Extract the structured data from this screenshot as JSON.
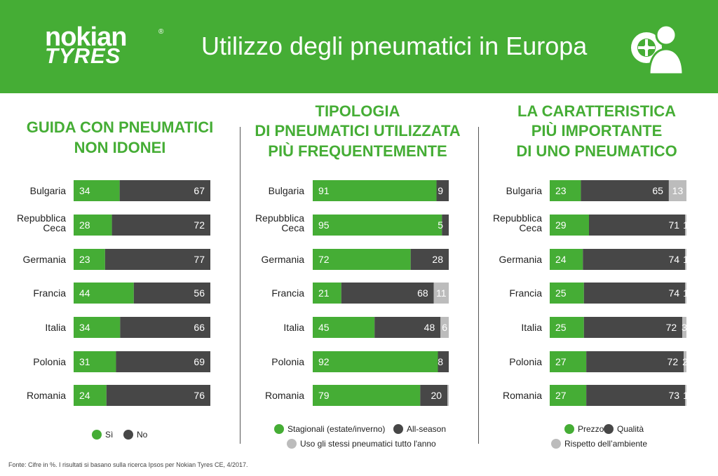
{
  "header": {
    "logo_line1": "nokian",
    "logo_line2": "TYRES",
    "logo_reg": "®",
    "title": "Utilizzo degli pneumatici in Europa",
    "icon": "person-with-tyre-icon",
    "background_color": "#45ad35"
  },
  "colors": {
    "green": "#45ad35",
    "dark": "#474747",
    "grey": "#bcbcbc"
  },
  "chart_data": [
    {
      "type": "bar",
      "stacked": true,
      "orientation": "horizontal",
      "title": [
        "GUIDA CON PNEUMATICI",
        "NON IDONEI"
      ],
      "categories": [
        "Bulgaria",
        "Repubblica Ceca",
        "Germania",
        "Francia",
        "Italia",
        "Polonia",
        "Romania"
      ],
      "series": [
        {
          "name": "Sì",
          "color": "#45ad35",
          "values": [
            34,
            28,
            23,
            44,
            34,
            31,
            24
          ]
        },
        {
          "name": "No",
          "color": "#474747",
          "values": [
            67,
            72,
            77,
            56,
            66,
            69,
            76
          ]
        }
      ],
      "legend": "bottom"
    },
    {
      "type": "bar",
      "stacked": true,
      "orientation": "horizontal",
      "title": [
        "TIPOLOGIA",
        "DI PNEUMATICI UTILIZZATA",
        "PIÙ FREQUENTEMENTE"
      ],
      "categories": [
        "Bulgaria",
        "Repubblica Ceca",
        "Germania",
        "Francia",
        "Italia",
        "Polonia",
        "Romania"
      ],
      "series": [
        {
          "name": "Stagionali (estate/inverno)",
          "color": "#45ad35",
          "values": [
            91,
            95,
            72,
            21,
            45,
            92,
            79
          ]
        },
        {
          "name": "All-season",
          "color": "#474747",
          "values": [
            9,
            5,
            28,
            68,
            48,
            8,
            20
          ]
        },
        {
          "name": "Uso gli stessi pneumatici tutto l'anno",
          "color": "#bcbcbc",
          "values": [
            0,
            0,
            0,
            11,
            6,
            0,
            1
          ]
        }
      ],
      "value_labels": [
        [
          "91",
          "95",
          "72",
          "21",
          "45",
          "92",
          "79"
        ],
        [
          "9",
          "5",
          "28",
          "68",
          "48",
          "8",
          "20"
        ],
        [
          "",
          "",
          "",
          "11",
          "6",
          "",
          ""
        ]
      ],
      "legend": "bottom"
    },
    {
      "type": "bar",
      "stacked": true,
      "orientation": "horizontal",
      "title": [
        "LA CARATTERISTICA",
        "PIÙ IMPORTANTE",
        "DI UNO PNEUMATICO"
      ],
      "categories": [
        "Bulgaria",
        "Repubblica Ceca",
        "Germania",
        "Francia",
        "Italia",
        "Polonia",
        "Romania"
      ],
      "series": [
        {
          "name": "Prezzo",
          "color": "#45ad35",
          "values": [
            23,
            29,
            24,
            25,
            25,
            27,
            27
          ]
        },
        {
          "name": "Qualità",
          "color": "#474747",
          "values": [
            65,
            71,
            74,
            74,
            72,
            72,
            73
          ]
        },
        {
          "name": "Rispetto dell’ambiente",
          "color": "#bcbcbc",
          "values": [
            13,
            1,
            1,
            1,
            3,
            2,
            1
          ]
        }
      ],
      "legend": "bottom"
    }
  ],
  "source_note": "Fonte: Cifre in %. I risultati si basano sulla ricerca Ipsos per Nokian Tyres CE, 4/2017."
}
